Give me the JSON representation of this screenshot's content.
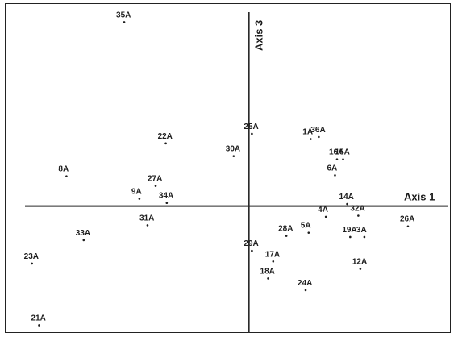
{
  "chart_data": {
    "type": "scatter",
    "title": "",
    "xlabel": "Axis 1",
    "ylabel": "Axis 3",
    "grid": false,
    "legend": "none",
    "xlim": [
      -2.4,
      2.0
    ],
    "ylim": [
      -1.2,
      1.9
    ],
    "points": [
      {
        "label": "35A",
        "x": -1.23,
        "y": 1.73
      },
      {
        "label": "25A",
        "x": 0.03,
        "y": 0.68
      },
      {
        "label": "1A",
        "x": 0.61,
        "y": 0.63
      },
      {
        "label": "36A",
        "x": 0.69,
        "y": 0.65
      },
      {
        "label": "22A",
        "x": -0.82,
        "y": 0.59
      },
      {
        "label": "30A",
        "x": -0.15,
        "y": 0.47
      },
      {
        "label": "16A",
        "x": 0.87,
        "y": 0.44
      },
      {
        "label": "15A",
        "x": 0.93,
        "y": 0.44
      },
      {
        "label": "6A",
        "x": 0.85,
        "y": 0.29
      },
      {
        "label": "8A",
        "x": -1.8,
        "y": 0.28
      },
      {
        "label": "27A",
        "x": -0.92,
        "y": 0.19
      },
      {
        "label": "9A",
        "x": -1.08,
        "y": 0.07
      },
      {
        "label": "34A",
        "x": -0.81,
        "y": 0.03
      },
      {
        "label": "14A",
        "x": 0.97,
        "y": 0.02
      },
      {
        "label": "32A",
        "x": 1.08,
        "y": -0.09
      },
      {
        "label": "4A",
        "x": 0.76,
        "y": -0.1
      },
      {
        "label": "26A",
        "x": 1.57,
        "y": -0.19
      },
      {
        "label": "31A",
        "x": -1.0,
        "y": -0.18
      },
      {
        "label": "5A",
        "x": 0.59,
        "y": -0.25
      },
      {
        "label": "28A",
        "x": 0.37,
        "y": -0.28
      },
      {
        "label": "19A",
        "x": 1.0,
        "y": -0.29
      },
      {
        "label": "3A",
        "x": 1.14,
        "y": -0.29
      },
      {
        "label": "33A",
        "x": -1.63,
        "y": -0.32
      },
      {
        "label": "29A",
        "x": 0.03,
        "y": -0.42
      },
      {
        "label": "17A",
        "x": 0.24,
        "y": -0.52
      },
      {
        "label": "23A",
        "x": -2.14,
        "y": -0.54
      },
      {
        "label": "12A",
        "x": 1.1,
        "y": -0.59
      },
      {
        "label": "18A",
        "x": 0.19,
        "y": -0.68
      },
      {
        "label": "24A",
        "x": 0.56,
        "y": -0.79
      },
      {
        "label": "21A",
        "x": -2.07,
        "y": -1.12
      }
    ]
  }
}
